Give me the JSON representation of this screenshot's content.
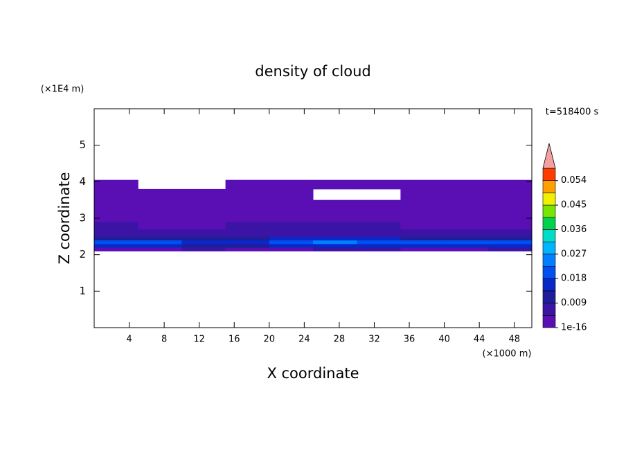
{
  "chart_data": {
    "type": "contour",
    "title": "density of cloud",
    "x_label": "X coordinate",
    "y_label": "Z coordinate",
    "x_unit": "(×1000 m)",
    "y_unit": "(×1E4 m)",
    "annotation": "t=518400 s",
    "xlim": [
      0,
      50
    ],
    "ylim": [
      0,
      6
    ],
    "xticks": [
      4,
      8,
      12,
      16,
      20,
      24,
      28,
      32,
      36,
      40,
      44,
      48
    ],
    "yticks": [
      1,
      2,
      3,
      4,
      5
    ],
    "x_edges": [
      0,
      5,
      10,
      15,
      20,
      25,
      30,
      35,
      40,
      45,
      50
    ],
    "y_edges": [
      2.1,
      2.2,
      2.3,
      2.4,
      2.5,
      2.7,
      2.9,
      3.2,
      3.5,
      3.8,
      4.05
    ],
    "values": [
      [
        0.004,
        0.004,
        0.005,
        0.004,
        0.004,
        0.005,
        0.005,
        0.004,
        0.004,
        0.005
      ],
      [
        0.014,
        0.016,
        0.013,
        0.012,
        0.015,
        0.017,
        0.016,
        0.014,
        0.016,
        0.015
      ],
      [
        0.019,
        0.021,
        0.017,
        0.016,
        0.02,
        0.023,
        0.022,
        0.019,
        0.021,
        0.02
      ],
      [
        0.011,
        0.012,
        0.01,
        0.012,
        0.014,
        0.016,
        0.015,
        0.012,
        0.011,
        0.011
      ],
      [
        0.006,
        0.007,
        0.006,
        0.006,
        0.007,
        0.008,
        0.008,
        0.007,
        0.006,
        0.006
      ],
      [
        0.005,
        0.004,
        0.004,
        0.005,
        0.005,
        0.005,
        0.005,
        0.004,
        0.004,
        0.004
      ],
      [
        0.003,
        0.003,
        0.002,
        0.003,
        0.003,
        0.003,
        0.003,
        0.002,
        0.003,
        0.003
      ],
      [
        0.002,
        0.002,
        0.002,
        0.002,
        0.002,
        0.001,
        0.001,
        0.002,
        0.001,
        0.002
      ],
      [
        0.001,
        0.001,
        0.001,
        0.001,
        0.001,
        null,
        null,
        0.001,
        0.001,
        0.001
      ],
      [
        0.001,
        null,
        null,
        0.001,
        0.001,
        0.001,
        0.001,
        0.001,
        0.001,
        0.001
      ]
    ],
    "levels": [
      1e-16,
      0.0045,
      0.009,
      0.0135,
      0.018,
      0.0225,
      0.027,
      0.0315,
      0.036,
      0.0405,
      0.045,
      0.0495,
      0.054,
      0.0585
    ],
    "colors": [
      "#5a0fb4",
      "#3c14a5",
      "#1e1e9b",
      "#0a28c8",
      "#0050f0",
      "#0080ff",
      "#00b4ff",
      "#00dcc8",
      "#00d250",
      "#78e600",
      "#f0f000",
      "#ffa000",
      "#ff3c00"
    ],
    "extend_color": "#f5a0a0",
    "colorbar_ticks": [
      1e-16,
      0.009,
      0.018,
      0.027,
      0.036,
      0.045,
      0.054
    ]
  }
}
